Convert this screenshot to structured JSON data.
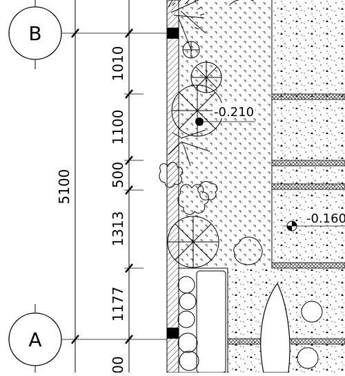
{
  "grid_axes": [
    {
      "id": "B",
      "label": "B"
    },
    {
      "id": "A",
      "label": "A"
    }
  ],
  "dimensions": {
    "overall": {
      "label": "5100"
    },
    "segments": [
      {
        "label": "1010"
      },
      {
        "label": "1100"
      },
      {
        "label": "500"
      },
      {
        "label": "1313"
      },
      {
        "label": "1177"
      },
      {
        "label": "00"
      }
    ]
  },
  "levels": [
    {
      "label": "-0.210"
    },
    {
      "label": "-0.160"
    }
  ],
  "legend": {
    "hatch_wall": "hatched wall section",
    "fill_paving": "gravel/aggregate paving",
    "fill_lawn": "planting bed"
  }
}
